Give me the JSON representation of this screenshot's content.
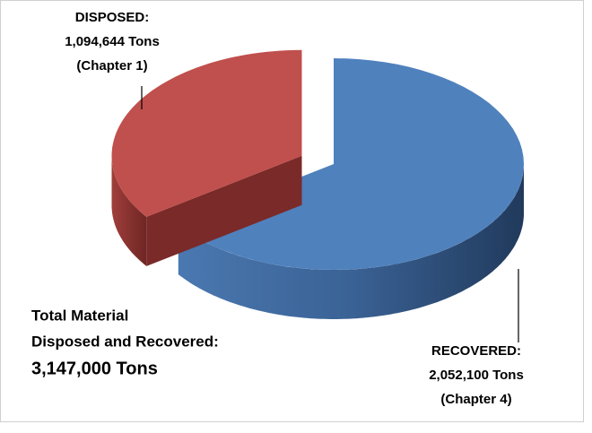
{
  "chart_data": {
    "type": "pie",
    "categories": [
      "DISPOSED:",
      "RECOVERED:"
    ],
    "values": [
      1094644,
      2052100
    ],
    "value_labels": [
      "1,094,644 Tons",
      "2,052,100 Tons"
    ],
    "sources": [
      "(Chapter 1)",
      "(Chapter 4)"
    ],
    "colors": [
      "#c0504d",
      "#4f81bd"
    ],
    "annotation": [
      "Total Material",
      "Disposed and Recovered:",
      "3,147,000 Tons"
    ]
  }
}
